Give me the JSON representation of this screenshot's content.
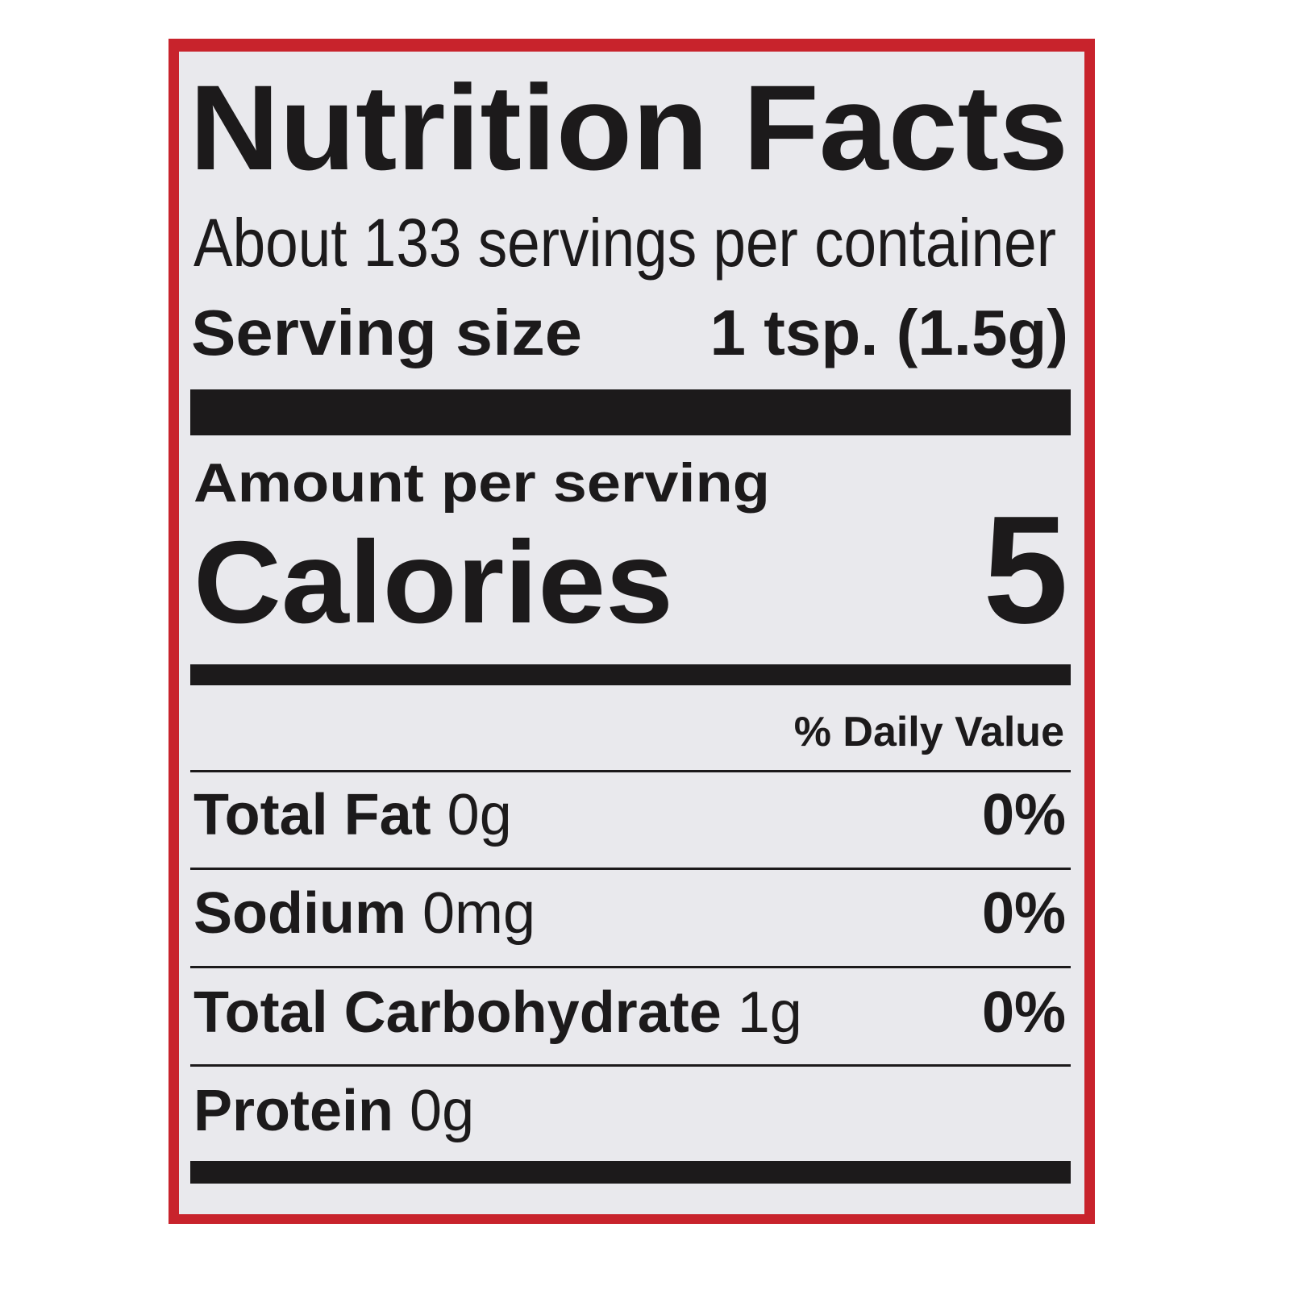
{
  "label": {
    "title": "Nutrition Facts",
    "servings": "About 133 servings per container",
    "serving_size": {
      "label": "Serving size",
      "value": "1 tsp. (1.5g)"
    },
    "amount_per_serving": "Amount per serving",
    "calories": {
      "label": "Calories",
      "value": "5"
    },
    "daily_value_header": "% Daily Value",
    "nutrients": [
      {
        "name": "Total Fat",
        "amount": "0g",
        "daily_value": "0%"
      },
      {
        "name": "Sodium",
        "amount": "0mg",
        "daily_value": "0%"
      },
      {
        "name": "Total Carbohydrate",
        "amount": "1g",
        "daily_value": "0%"
      },
      {
        "name": "Protein",
        "amount": "0g"
      }
    ]
  }
}
